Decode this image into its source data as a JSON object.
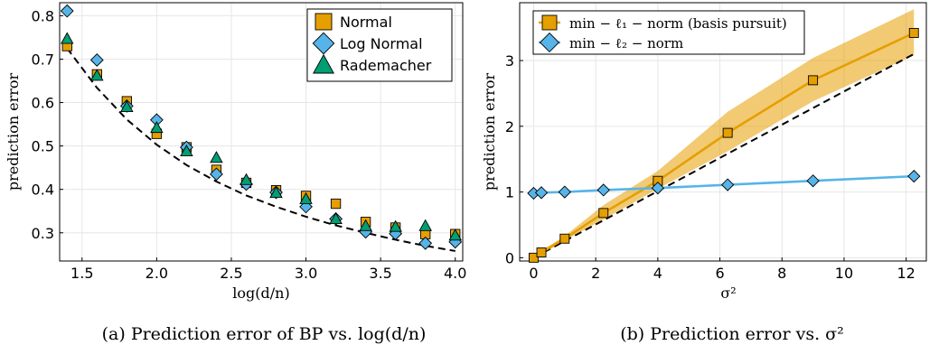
{
  "chart_data": [
    {
      "type": "scatter",
      "caption": "(a) Prediction error of BP vs. log(d/n)",
      "xlabel": "log(d/n)",
      "ylabel": "prediction error",
      "xlim": [
        1.35,
        4.05
      ],
      "ylim": [
        0.235,
        0.83
      ],
      "xticks": [
        "1.5",
        "2.0",
        "2.5",
        "3.0",
        "3.5",
        "4.0"
      ],
      "yticks": [
        "0.3",
        "0.4",
        "0.5",
        "0.6",
        "0.7",
        "0.8"
      ],
      "grid": true,
      "legend_position": "top-right",
      "x": [
        1.4,
        1.6,
        1.8,
        2.0,
        2.2,
        2.4,
        2.6,
        2.8,
        3.0,
        3.2,
        3.4,
        3.6,
        3.8,
        4.0
      ],
      "series": [
        {
          "name": "Normal",
          "marker": "square",
          "color": "#E69F00",
          "values": [
            0.73,
            0.665,
            0.603,
            0.528,
            0.497,
            0.445,
            0.415,
            0.398,
            0.385,
            0.367,
            0.325,
            0.312,
            0.297,
            0.297
          ]
        },
        {
          "name": "Log Normal",
          "marker": "diamond",
          "color": "#56B4E9",
          "values": [
            0.811,
            0.698,
            0.592,
            0.56,
            0.497,
            0.435,
            0.412,
            0.393,
            0.36,
            0.332,
            0.302,
            0.298,
            0.276,
            0.279
          ]
        },
        {
          "name": "Rademacher",
          "marker": "triangle",
          "color": "#009E73",
          "values": [
            0.747,
            0.662,
            0.59,
            0.542,
            0.488,
            0.473,
            0.422,
            0.392,
            0.378,
            0.332,
            0.316,
            0.314,
            0.316,
            0.294
          ]
        }
      ],
      "reference_curve": {
        "style": "dashed",
        "color": "#000000",
        "x": [
          1.4,
          1.6,
          1.8,
          2.0,
          2.2,
          2.4,
          2.6,
          2.8,
          3.0,
          3.2,
          3.4,
          3.6,
          3.8,
          4.0
        ],
        "values": [
          0.725,
          0.634,
          0.561,
          0.503,
          0.456,
          0.418,
          0.386,
          0.36,
          0.337,
          0.317,
          0.3,
          0.284,
          0.27,
          0.258
        ]
      }
    },
    {
      "type": "line",
      "caption": "(b) Prediction error vs. σ²",
      "xlabel": "σ²",
      "ylabel": "prediction error",
      "xlim": [
        -0.45,
        12.65
      ],
      "ylim": [
        -0.05,
        3.88
      ],
      "xticks": [
        "0",
        "2",
        "4",
        "6",
        "8",
        "10",
        "12"
      ],
      "yticks": [
        "0",
        "1",
        "2",
        "3"
      ],
      "grid": true,
      "legend_position": "top-left",
      "x": [
        0.0,
        0.25,
        1.0,
        2.25,
        4.0,
        6.25,
        9.0,
        12.25
      ],
      "series": [
        {
          "name": "min − ℓ₁ − norm (basis pursuit)",
          "marker": "square",
          "color": "#E69F00",
          "values": [
            0.0,
            0.08,
            0.29,
            0.68,
            1.17,
            1.9,
            2.7,
            3.42
          ],
          "band_low": [
            0.0,
            0.05,
            0.26,
            0.58,
            1.05,
            1.62,
            2.38,
            3.08
          ],
          "band_high": [
            0.0,
            0.11,
            0.33,
            0.8,
            1.32,
            2.22,
            3.04,
            3.78
          ]
        },
        {
          "name": "min − ℓ₂ − norm",
          "marker": "diamond",
          "color": "#56B4E9",
          "values": [
            0.98,
            0.99,
            1.0,
            1.03,
            1.06,
            1.11,
            1.17,
            1.24
          ]
        }
      ],
      "reference_curve": {
        "style": "dashed",
        "color": "#000000",
        "x": [
          0.0,
          12.25
        ],
        "values": [
          0.0,
          3.1
        ]
      }
    }
  ]
}
